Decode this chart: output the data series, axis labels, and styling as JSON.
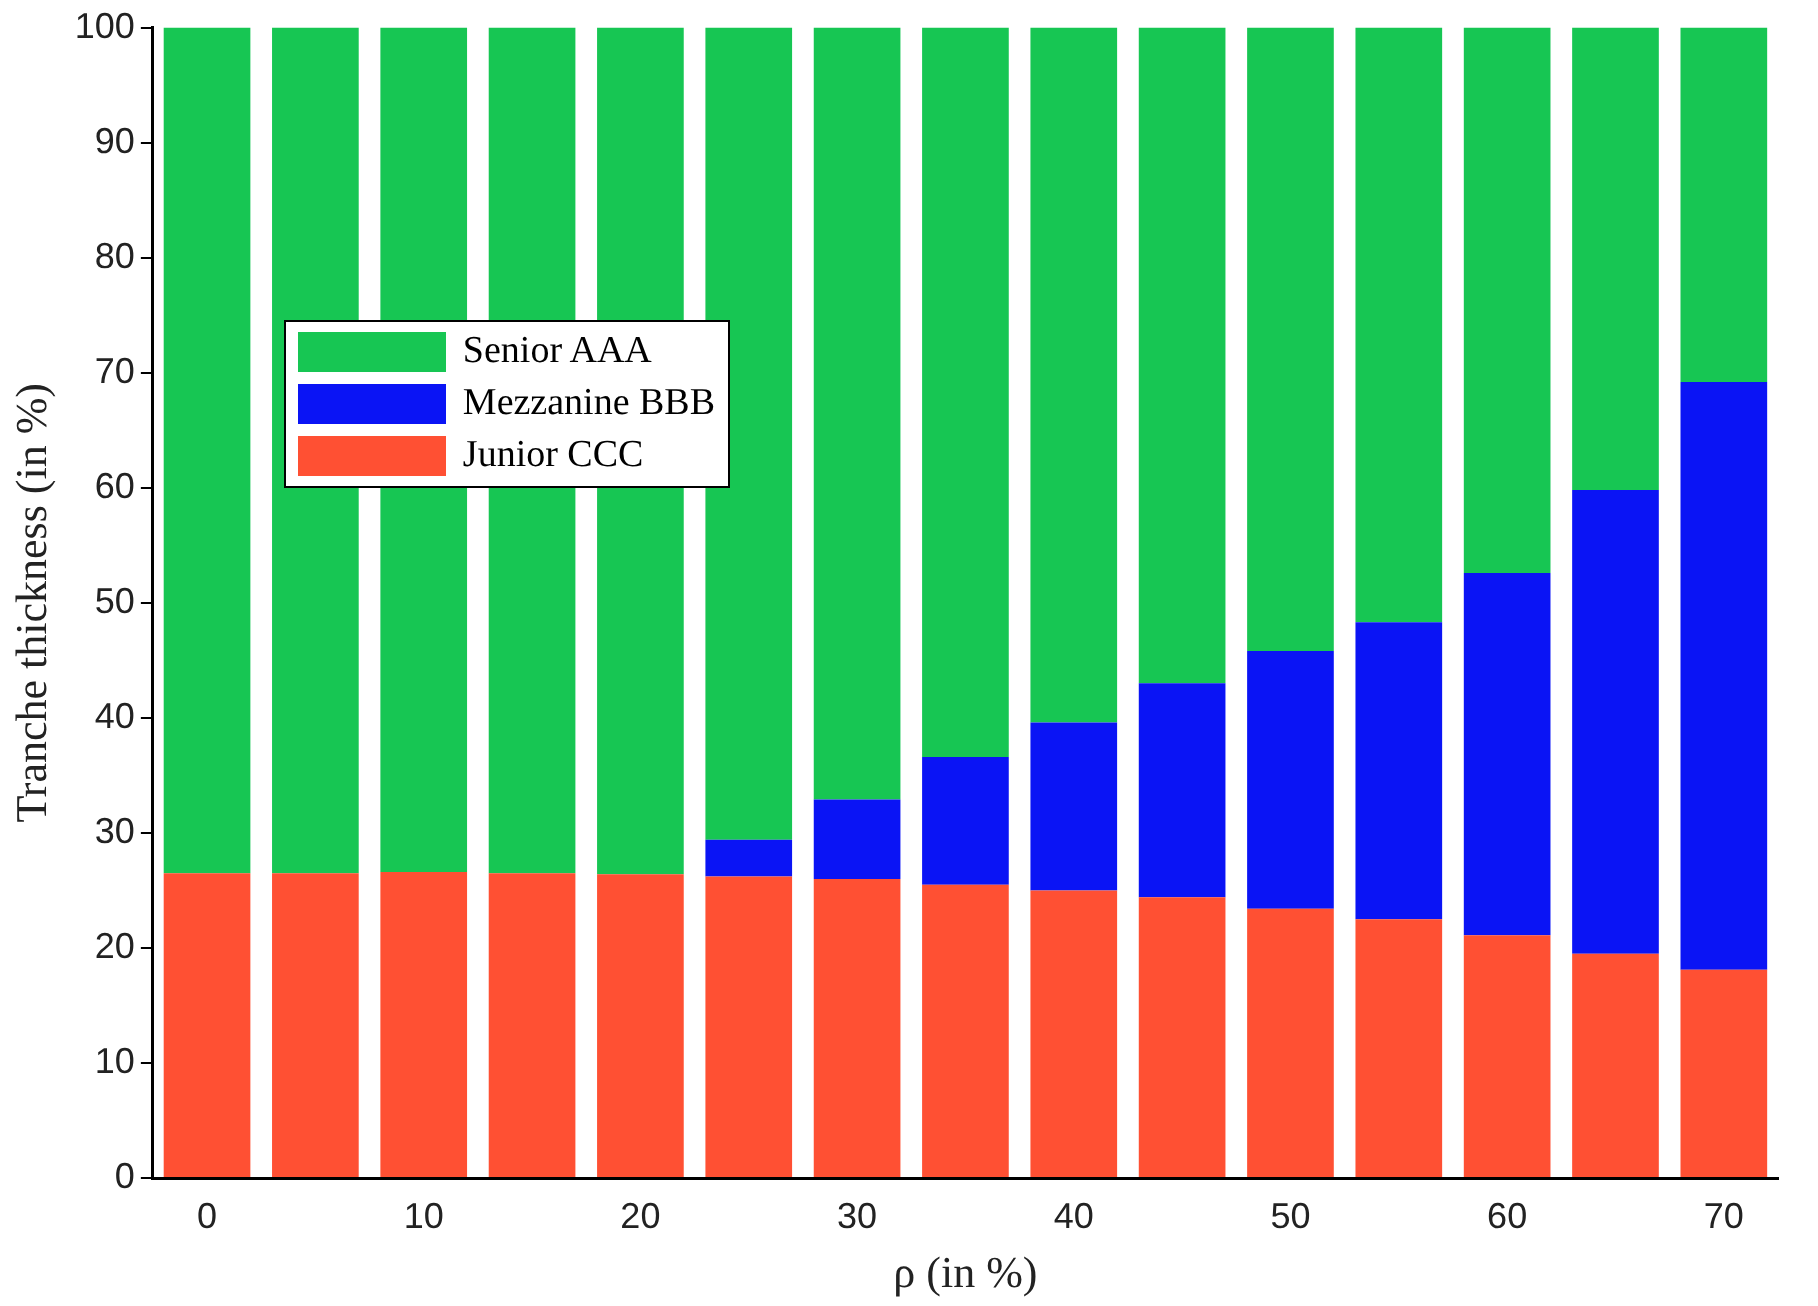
{
  "chart_data": {
    "type": "bar",
    "stacked": true,
    "xlabel": "ρ (in %)",
    "ylabel": "Tranche thickness (in %)",
    "categories": [
      "0",
      null,
      "10",
      null,
      "20",
      null,
      "30",
      null,
      "40",
      null,
      "50",
      null,
      "60",
      null,
      "70"
    ],
    "series": [
      {
        "name": "Junior CCC",
        "color": "#ff5033",
        "values": [
          26.5,
          26.5,
          26.6,
          26.5,
          26.4,
          26.2,
          26.0,
          25.5,
          25.0,
          24.4,
          23.4,
          22.5,
          21.1,
          19.5,
          18.1
        ]
      },
      {
        "name": "Mezzanine BBB",
        "color": "#0a14f5",
        "values": [
          0,
          0,
          0,
          0,
          0,
          3.2,
          6.9,
          11.1,
          14.6,
          18.6,
          22.4,
          25.8,
          31.5,
          40.3,
          51.1
        ]
      },
      {
        "name": "Senior AAA",
        "color": "#17c653",
        "values": [
          73.5,
          73.5,
          73.4,
          73.5,
          73.6,
          70.6,
          67.1,
          63.4,
          60.4,
          57.0,
          54.2,
          51.7,
          47.4,
          40.2,
          30.8
        ]
      }
    ],
    "ylim": [
      0,
      100
    ],
    "yticks": [
      0,
      10,
      20,
      30,
      40,
      50,
      60,
      70,
      80,
      90,
      100
    ],
    "grid": false,
    "legend": "top left"
  }
}
